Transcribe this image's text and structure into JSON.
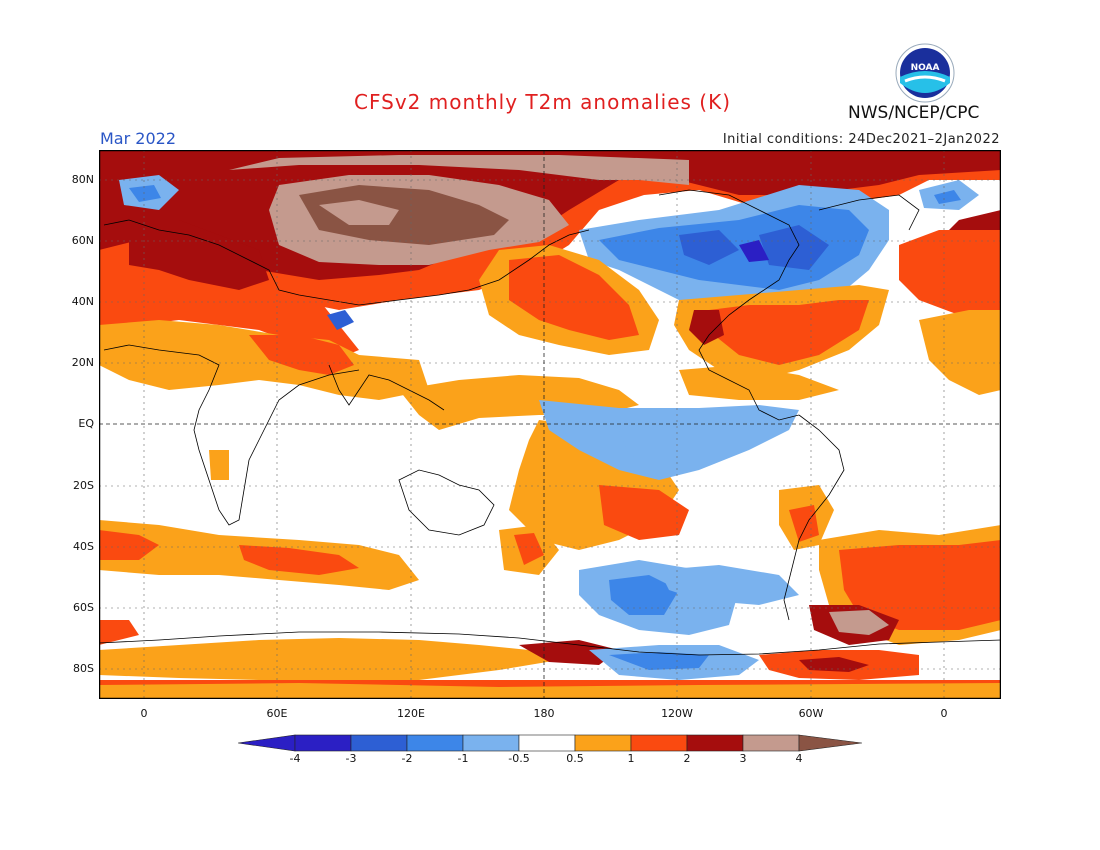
{
  "header": {
    "title": "CFSv2 monthly T2m anomalies (K)",
    "month": "Mar 2022",
    "initial_conditions": "Initial conditions: 24Dec2021–2Jan2022",
    "agency": "NWS/NCEP/CPC",
    "logo_text": "NOAA"
  },
  "map": {
    "lat_labels": [
      "80N",
      "60N",
      "40N",
      "20N",
      "EQ",
      "20S",
      "40S",
      "60S",
      "80S"
    ],
    "lon_labels": [
      "0",
      "60E",
      "120E",
      "180",
      "120W",
      "60W",
      "0"
    ]
  },
  "colorbar": {
    "labels": [
      "-4",
      "-3",
      "-2",
      "-1",
      "-0.5",
      "0.5",
      "1",
      "2",
      "3",
      "4"
    ],
    "colors": [
      "#2b1fc4",
      "#2d5fd4",
      "#3d86e8",
      "#7ab2ee",
      "#ffffff",
      "#fba21a",
      "#fa4a10",
      "#a50d0d",
      "#c49a8e",
      "#8a5444"
    ]
  }
}
